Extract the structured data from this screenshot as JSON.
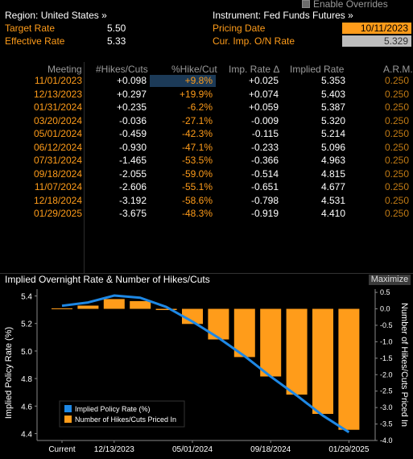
{
  "header": {
    "enable_overrides_label": "Enable Overrides",
    "region_label": "Region: United States »",
    "instrument_label": "Instrument: Fed Funds Futures »",
    "target_rate_label": "Target Rate",
    "target_rate_value": "5.50",
    "effective_rate_label": "Effective Rate",
    "effective_rate_value": "5.33",
    "pricing_date_label": "Pricing Date",
    "pricing_date_value": "10/11/2023",
    "cur_imp_label": "Cur. Imp. O/N Rate",
    "cur_imp_value": "5.329"
  },
  "table": {
    "columns": [
      "Meeting",
      "#Hikes/Cuts",
      "%Hike/Cut",
      "Imp. Rate Δ",
      "Implied Rate",
      "A.R.M."
    ],
    "rows": [
      {
        "meeting": "11/01/2023",
        "hikes": "+0.098",
        "pct": "+9.8%",
        "delta": "+0.025",
        "implied": "5.353",
        "arm": "0.250"
      },
      {
        "meeting": "12/13/2023",
        "hikes": "+0.297",
        "pct": "+19.9%",
        "delta": "+0.074",
        "implied": "5.403",
        "arm": "0.250"
      },
      {
        "meeting": "01/31/2024",
        "hikes": "+0.235",
        "pct": "-6.2%",
        "delta": "+0.059",
        "implied": "5.387",
        "arm": "0.250"
      },
      {
        "meeting": "03/20/2024",
        "hikes": "-0.036",
        "pct": "-27.1%",
        "delta": "-0.009",
        "implied": "5.320",
        "arm": "0.250"
      },
      {
        "meeting": "05/01/2024",
        "hikes": "-0.459",
        "pct": "-42.3%",
        "delta": "-0.115",
        "implied": "5.214",
        "arm": "0.250"
      },
      {
        "meeting": "06/12/2024",
        "hikes": "-0.930",
        "pct": "-47.1%",
        "delta": "-0.233",
        "implied": "5.096",
        "arm": "0.250"
      },
      {
        "meeting": "07/31/2024",
        "hikes": "-1.465",
        "pct": "-53.5%",
        "delta": "-0.366",
        "implied": "4.963",
        "arm": "0.250"
      },
      {
        "meeting": "09/18/2024",
        "hikes": "-2.055",
        "pct": "-59.0%",
        "delta": "-0.514",
        "implied": "4.815",
        "arm": "0.250"
      },
      {
        "meeting": "11/07/2024",
        "hikes": "-2.606",
        "pct": "-55.1%",
        "delta": "-0.651",
        "implied": "4.677",
        "arm": "0.250"
      },
      {
        "meeting": "12/18/2024",
        "hikes": "-3.192",
        "pct": "-58.6%",
        "delta": "-0.798",
        "implied": "4.531",
        "arm": "0.250"
      },
      {
        "meeting": "01/29/2025",
        "hikes": "-3.675",
        "pct": "-48.3%",
        "delta": "-0.919",
        "implied": "4.410",
        "arm": "0.250"
      }
    ]
  },
  "chart_panel": {
    "title": "Implied Overnight Rate & Number of Hikes/Cuts",
    "maximize_label": "Maximize"
  },
  "colors": {
    "accent_orange": "#ff9c1a",
    "line_blue": "#1e88e5",
    "selected_row": "#1c3a57"
  },
  "chart_data": {
    "type": "bar",
    "title": "Implied Overnight Rate & Number of Hikes/Cuts",
    "categories": [
      "Current",
      "11/01/2023",
      "12/13/2023",
      "01/31/2024",
      "03/20/2024",
      "05/01/2024",
      "06/12/2024",
      "07/31/2024",
      "09/18/2024",
      "11/07/2024",
      "12/18/2024",
      "01/29/2025"
    ],
    "x_tick_labels": [
      "Current",
      "12/13/2023",
      "05/01/2024",
      "09/18/2024",
      "01/29/2025"
    ],
    "ylabel_left": "Implied Policy Rate (%)",
    "ylabel_right": "Number of Hikes/Cuts Priced In",
    "ylim_left": [
      4.35,
      5.45
    ],
    "ylim_right": [
      -4.0,
      0.6
    ],
    "yticks_left": [
      4.4,
      4.6,
      4.8,
      5.0,
      5.2,
      5.4
    ],
    "yticks_right": [
      0.5,
      0.0,
      -0.5,
      -1.0,
      -1.5,
      -2.0,
      -2.5,
      -3.0,
      -3.5,
      -4.0
    ],
    "series": [
      {
        "name": "Implied Policy Rate (%)",
        "type": "line",
        "axis": "left",
        "color": "#1e88e5",
        "values": [
          5.329,
          5.353,
          5.403,
          5.387,
          5.32,
          5.214,
          5.096,
          4.963,
          4.815,
          4.677,
          4.531,
          4.41
        ]
      },
      {
        "name": "Number of Hikes/Cuts Priced In",
        "type": "bar",
        "axis": "right",
        "color": "#ff9c1a",
        "values": [
          0,
          0.098,
          0.297,
          0.235,
          -0.036,
          -0.459,
          -0.93,
          -1.465,
          -2.055,
          -2.606,
          -3.192,
          -3.675
        ]
      }
    ],
    "legend_position": "bottom-left",
    "grid": false
  }
}
